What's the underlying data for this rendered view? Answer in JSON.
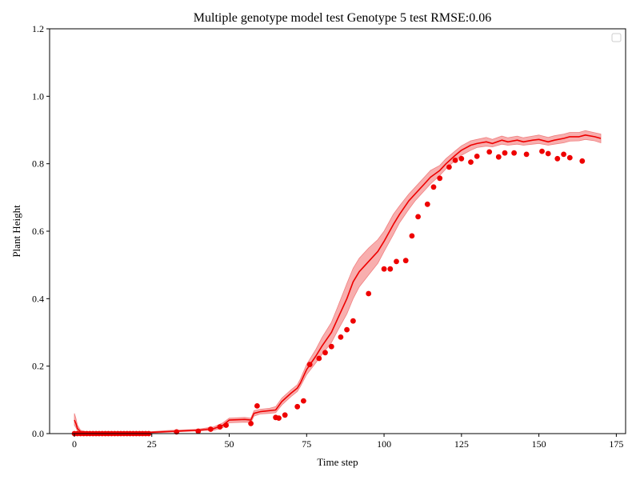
{
  "chart_data": {
    "type": "line",
    "title": "Multiple genotype model test Genotype 5 test RMSE:0.06",
    "xlabel": "Time step",
    "ylabel": "Plant Height",
    "xlim": [
      -8,
      178
    ],
    "ylim": [
      0,
      1.2
    ],
    "xticks": [
      0,
      25,
      50,
      75,
      100,
      125,
      150,
      175
    ],
    "yticks": [
      0.0,
      0.2,
      0.4,
      0.6,
      0.8,
      1.0,
      1.2
    ],
    "xtick_labels": [
      "0",
      "25",
      "50",
      "75",
      "100",
      "125",
      "150",
      "175"
    ],
    "ytick_labels": [
      "0.0",
      "0.2",
      "0.4",
      "0.6",
      "0.8",
      "1.0",
      "1.2"
    ],
    "legend": {
      "placement": "top-right",
      "entries": []
    },
    "grid": false,
    "colors": {
      "prediction_line": "#ee0000",
      "prediction_band": "#f7a0a0",
      "observed_points": "#ee0000"
    },
    "series": [
      {
        "kind": "line_with_band",
        "x": [
          0,
          0.5,
          1,
          2,
          3,
          5,
          10,
          15,
          20,
          25,
          30,
          35,
          40,
          45,
          48,
          50,
          55,
          57,
          58,
          60,
          63,
          65,
          67,
          70,
          72,
          73,
          75,
          78,
          80,
          83,
          85,
          88,
          90,
          92,
          95,
          98,
          100,
          103,
          105,
          108,
          110,
          113,
          115,
          118,
          120,
          123,
          125,
          128,
          130,
          133,
          135,
          138,
          140,
          143,
          145,
          148,
          150,
          153,
          155,
          158,
          160,
          163,
          165,
          168,
          170
        ],
        "y": [
          0.04,
          0.03,
          0.015,
          0.005,
          0.003,
          0.002,
          0.002,
          0.002,
          0.003,
          0.004,
          0.006,
          0.008,
          0.01,
          0.015,
          0.025,
          0.04,
          0.042,
          0.04,
          0.06,
          0.065,
          0.068,
          0.07,
          0.095,
          0.12,
          0.135,
          0.15,
          0.19,
          0.23,
          0.26,
          0.3,
          0.34,
          0.4,
          0.45,
          0.48,
          0.51,
          0.54,
          0.57,
          0.62,
          0.65,
          0.69,
          0.71,
          0.74,
          0.76,
          0.78,
          0.8,
          0.825,
          0.84,
          0.855,
          0.86,
          0.865,
          0.86,
          0.87,
          0.865,
          0.87,
          0.865,
          0.87,
          0.872,
          0.865,
          0.87,
          0.875,
          0.88,
          0.88,
          0.885,
          0.88,
          0.875
        ],
        "lower": [
          0.025,
          0.018,
          0.008,
          0.001,
          0.0,
          0.0,
          0.0,
          0.0,
          0.001,
          0.002,
          0.004,
          0.006,
          0.008,
          0.01,
          0.018,
          0.032,
          0.034,
          0.033,
          0.052,
          0.058,
          0.06,
          0.062,
          0.085,
          0.11,
          0.125,
          0.14,
          0.175,
          0.21,
          0.235,
          0.27,
          0.305,
          0.355,
          0.4,
          0.435,
          0.47,
          0.505,
          0.54,
          0.59,
          0.625,
          0.665,
          0.69,
          0.72,
          0.74,
          0.765,
          0.785,
          0.81,
          0.825,
          0.84,
          0.848,
          0.852,
          0.85,
          0.858,
          0.855,
          0.858,
          0.855,
          0.858,
          0.86,
          0.855,
          0.858,
          0.862,
          0.867,
          0.868,
          0.872,
          0.868,
          0.862
        ],
        "upper": [
          0.06,
          0.045,
          0.025,
          0.01,
          0.007,
          0.005,
          0.004,
          0.004,
          0.005,
          0.006,
          0.009,
          0.011,
          0.013,
          0.02,
          0.032,
          0.046,
          0.048,
          0.046,
          0.068,
          0.072,
          0.075,
          0.08,
          0.105,
          0.13,
          0.145,
          0.162,
          0.205,
          0.25,
          0.285,
          0.33,
          0.375,
          0.445,
          0.49,
          0.52,
          0.55,
          0.575,
          0.6,
          0.65,
          0.675,
          0.71,
          0.73,
          0.76,
          0.78,
          0.795,
          0.815,
          0.838,
          0.853,
          0.868,
          0.872,
          0.878,
          0.872,
          0.882,
          0.877,
          0.882,
          0.877,
          0.882,
          0.885,
          0.878,
          0.883,
          0.888,
          0.893,
          0.893,
          0.898,
          0.892,
          0.888
        ]
      },
      {
        "kind": "scatter",
        "x": [
          0,
          1,
          2,
          3,
          4,
          5,
          6,
          7,
          8,
          9,
          10,
          11,
          12,
          13,
          14,
          15,
          16,
          17,
          18,
          19,
          20,
          21,
          22,
          23,
          24,
          33,
          40,
          44,
          47,
          49,
          57,
          59,
          65,
          66,
          68,
          72,
          74,
          76,
          79,
          81,
          83,
          86,
          88,
          90,
          95,
          100,
          102,
          104,
          107,
          109,
          111,
          114,
          116,
          118,
          121,
          123,
          125,
          128,
          130,
          134,
          137,
          139,
          142,
          146,
          151,
          153,
          156,
          158,
          160,
          164
        ],
        "y": [
          0.0,
          0.0,
          0.0,
          0.0,
          0.0,
          0.0,
          0.0,
          0.0,
          0.0,
          0.0,
          0.0,
          0.0,
          0.0,
          0.0,
          0.0,
          0.0,
          0.0,
          0.0,
          0.0,
          0.0,
          0.0,
          0.0,
          0.0,
          0.0,
          0.0,
          0.005,
          0.007,
          0.013,
          0.02,
          0.025,
          0.03,
          0.082,
          0.048,
          0.046,
          0.055,
          0.08,
          0.097,
          0.205,
          0.223,
          0.24,
          0.258,
          0.286,
          0.308,
          0.334,
          0.415,
          0.488,
          0.488,
          0.51,
          0.513,
          0.586,
          0.643,
          0.68,
          0.731,
          0.757,
          0.79,
          0.81,
          0.815,
          0.805,
          0.822,
          0.835,
          0.82,
          0.832,
          0.832,
          0.828,
          0.837,
          0.83,
          0.815,
          0.828,
          0.818,
          0.808
        ]
      }
    ]
  }
}
